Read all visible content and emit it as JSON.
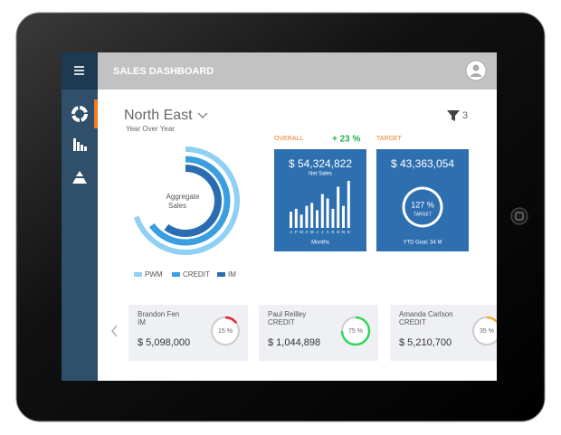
{
  "header": {
    "title": "SALES DASHBOARD"
  },
  "region": {
    "name": "North East",
    "subtitle": "Year Over Year"
  },
  "filter": {
    "count": "3"
  },
  "donut": {
    "center_label_1": "Aggregate",
    "center_label_2": "Sales",
    "series": [
      {
        "name": "PWM",
        "color": "#8fd0f5",
        "value": 70
      },
      {
        "name": "CREDIT",
        "color": "#3a9ee0",
        "value": 65
      },
      {
        "name": "IM",
        "color": "#2a6db3",
        "value": 60
      }
    ]
  },
  "overall": {
    "label": "OVERALL",
    "change": "+ 23 %",
    "amount": "$ 54,324,822",
    "amount_label": "Net Sales",
    "axis_label": "Months",
    "months": [
      "J",
      "F",
      "M",
      "A",
      "M",
      "J",
      "J",
      "A",
      "S",
      "O",
      "N",
      "D"
    ],
    "values": [
      22,
      26,
      18,
      30,
      34,
      24,
      46,
      40,
      26,
      56,
      30,
      64
    ]
  },
  "target": {
    "label": "TARGET",
    "amount": "$ 43,363,054",
    "gauge": {
      "value": 127,
      "label": "127 %"
    },
    "gauge_label": "TARGET",
    "goal": "YTD Goal:  34 M"
  },
  "reps": [
    {
      "name": "Brandon Fen",
      "role": "IM",
      "amount": "$ 5,098,000",
      "gauge": {
        "value": 15,
        "label": "15 %"
      },
      "color": "#e8202a"
    },
    {
      "name": "Paul Reilley",
      "role": "CREDIT",
      "amount": "$ 1,044,898",
      "gauge": {
        "value": 75,
        "label": "75 %"
      },
      "color": "#2fd85a"
    },
    {
      "name": "Amanda Carlson",
      "role": "CREDIT",
      "amount": "$ 5,210,700",
      "gauge": {
        "value": 35,
        "label": "35 %"
      },
      "color": "#f2a93b"
    }
  ]
}
